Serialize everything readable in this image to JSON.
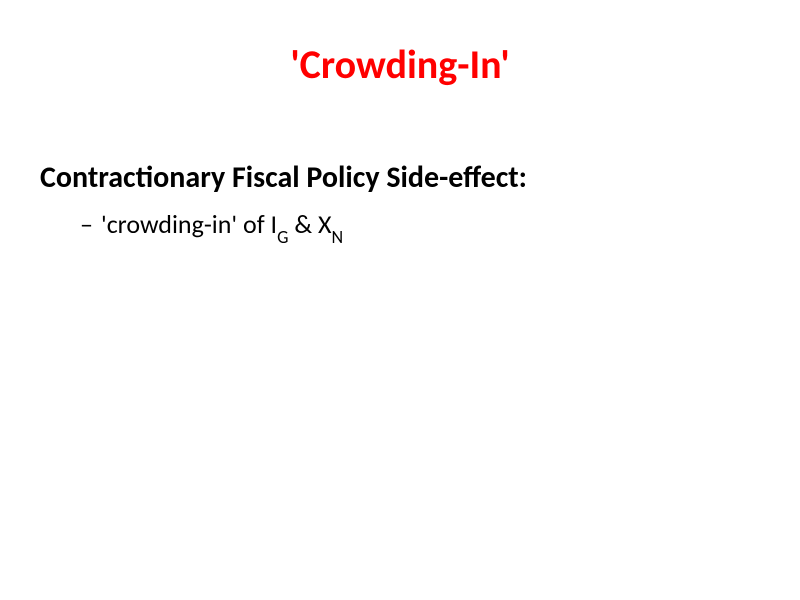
{
  "slide": {
    "title": "'Crowding-In'",
    "subheading": "Contractionary Fiscal Policy Side-effect:",
    "bullet": {
      "dash": "–",
      "part1": "'crowding-in' of I",
      "sub1": "G",
      "part2": " & X",
      "sub2": "N"
    },
    "colors": {
      "title_color": "#ff0000",
      "text_color": "#000000",
      "background": "#ffffff"
    },
    "typography": {
      "title_fontsize": 40,
      "subheading_fontsize": 30,
      "bullet_fontsize": 26,
      "subscript_fontsize": 18,
      "title_weight": "bold",
      "subheading_weight": "bold",
      "bullet_weight": "normal"
    }
  }
}
